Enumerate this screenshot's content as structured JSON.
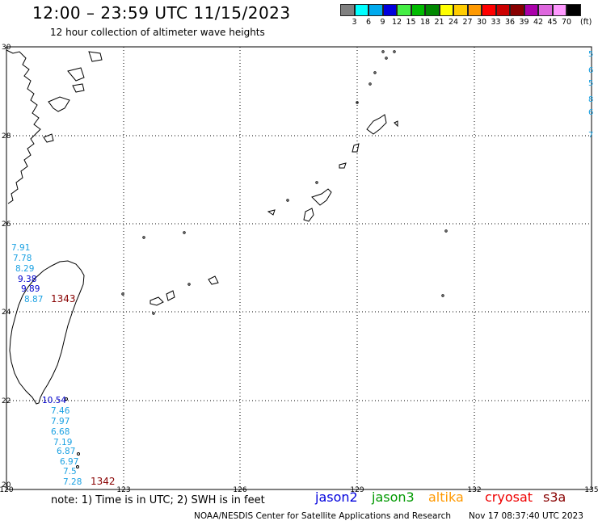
{
  "header": {
    "title": "12:00 – 23:59 UTC 11/15/2023",
    "subtitle": "12 hour collection of altimeter wave heights"
  },
  "legend": {
    "labels": [
      "3",
      "6",
      "9",
      "12",
      "15",
      "18",
      "21",
      "24",
      "27",
      "30",
      "33",
      "36",
      "39",
      "42",
      "45",
      "70"
    ],
    "unit": "(ft)",
    "colors": [
      "#808080",
      "#00ffff",
      "#00aaee",
      "#0000dd",
      "#44ee44",
      "#00bb00",
      "#008800",
      "#ffff00",
      "#ffcc00",
      "#ff9900",
      "#ff0000",
      "#cc0000",
      "#880000",
      "#aa00aa",
      "#dd66dd",
      "#ff99ff",
      "#000000"
    ]
  },
  "axes": {
    "lat_labels": [
      "30",
      "28",
      "26",
      "24",
      "22",
      "20"
    ],
    "lon_labels": [
      "120",
      "123",
      "126",
      "129",
      "132",
      "135"
    ]
  },
  "observations": [
    {
      "text": "7.91",
      "color": "#1ba1e2"
    },
    {
      "text": "7.78",
      "color": "#1ba1e2"
    },
    {
      "text": "8.29",
      "color": "#1ba1e2"
    },
    {
      "text": "9.38",
      "color": "#0000cc"
    },
    {
      "text": "9.89",
      "color": "#0000cc"
    },
    {
      "text": "8.87",
      "color": "#1ba1e2"
    },
    {
      "text": "1343",
      "color": "#880000"
    },
    {
      "text": "10.54",
      "color": "#0000cc"
    },
    {
      "text": "7.46",
      "color": "#1ba1e2"
    },
    {
      "text": "7.97",
      "color": "#1ba1e2"
    },
    {
      "text": "6.68",
      "color": "#1ba1e2"
    },
    {
      "text": "7.19",
      "color": "#1ba1e2"
    },
    {
      "text": "6.87",
      "color": "#1ba1e2"
    },
    {
      "text": "6.97",
      "color": "#1ba1e2"
    },
    {
      "text": "7.5",
      "color": "#1ba1e2"
    },
    {
      "text": "7.28",
      "color": "#1ba1e2"
    },
    {
      "text": "1342",
      "color": "#880000"
    }
  ],
  "footer": {
    "note": "note:  1) Time is in UTC;  2) SWH is in feet",
    "satellites": [
      {
        "name": "jason2",
        "color": "#0000dd"
      },
      {
        "name": "jason3",
        "color": "#009900"
      },
      {
        "name": "altika",
        "color": "#ff9900"
      },
      {
        "name": "cryosat",
        "color": "#ee0000"
      },
      {
        "name": "s3a",
        "color": "#880000"
      }
    ],
    "credit": "NOAA/NESDIS Center for Satellite Applications and Research",
    "timestamp": "Nov 17 08:37:40 UTC 2023"
  }
}
